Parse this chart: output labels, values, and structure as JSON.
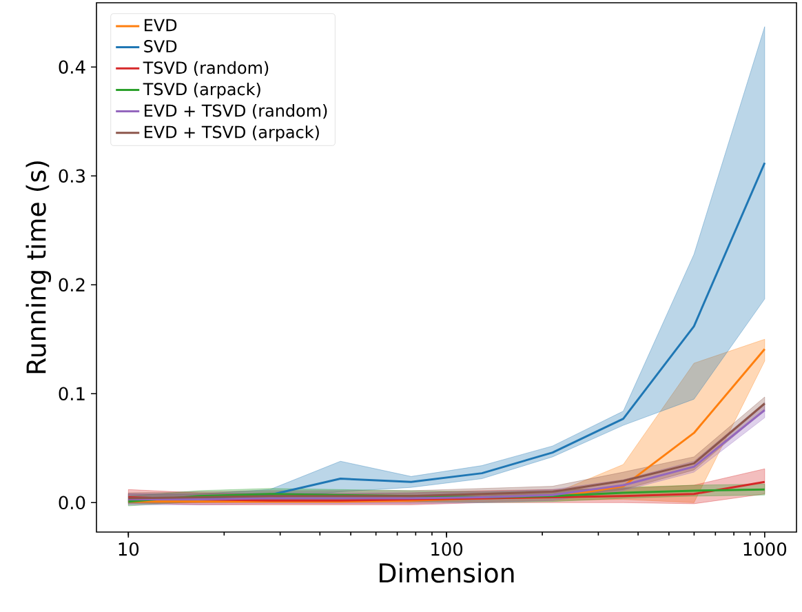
{
  "chart_data": {
    "type": "line",
    "xlabel": "Dimension",
    "ylabel": "Running time (s)",
    "log": "x",
    "xlim": [
      7.94,
      1259
    ],
    "ylim": [
      -0.027,
      0.459
    ],
    "xticks": [
      10,
      100,
      1000
    ],
    "yticks": [
      {
        "value": 0,
        "label": "0.0"
      },
      {
        "value": 0.1,
        "label": "0.1"
      },
      {
        "value": 0.2,
        "label": "0.2"
      },
      {
        "value": 0.3,
        "label": "0.3"
      },
      {
        "value": 0.4,
        "label": "0.4"
      }
    ],
    "x": [
      10,
      16.68,
      27.83,
      46.42,
      77.43,
      129.2,
      215.4,
      359.4,
      599.5,
      1000
    ],
    "legend": "top left",
    "marker": "none",
    "line_style": "solid",
    "series": [
      {
        "name": "EVD",
        "color": "#ff7f0e",
        "values": [
          0.001,
          0.001,
          0.001,
          0.001,
          0.002,
          0.004,
          0.005,
          0.015,
          0.064,
          0.141
        ],
        "lower": [
          0,
          0,
          0,
          0,
          0,
          0.001,
          0.002,
          0.003,
          0.0,
          0.13
        ],
        "upper": [
          0.003,
          0.003,
          0.003,
          0.003,
          0.004,
          0.007,
          0.008,
          0.035,
          0.128,
          0.15
        ]
      },
      {
        "name": "SVD",
        "color": "#1f77b4",
        "values": [
          0.003,
          0.004,
          0.007,
          0.022,
          0.019,
          0.027,
          0.046,
          0.077,
          0.162,
          0.312
        ],
        "lower": [
          0,
          0.002,
          0.004,
          0.01,
          0.014,
          0.022,
          0.042,
          0.071,
          0.095,
          0.187
        ],
        "upper": [
          0.008,
          0.008,
          0.012,
          0.038,
          0.024,
          0.034,
          0.052,
          0.084,
          0.228,
          0.437
        ]
      },
      {
        "name": "TSVD (random)",
        "color": "#d62728",
        "values": [
          0.005,
          0.003,
          0.002,
          0.002,
          0.003,
          0.004,
          0.005,
          0.006,
          0.008,
          0.019
        ],
        "lower": [
          0,
          -0.002,
          -0.002,
          -0.002,
          -0.002,
          0,
          0,
          0,
          -0.001,
          0.008
        ],
        "upper": [
          0.012,
          0.009,
          0.008,
          0.008,
          0.009,
          0.011,
          0.012,
          0.013,
          0.016,
          0.031
        ]
      },
      {
        "name": "TSVD (arpack)",
        "color": "#2ca02c",
        "values": [
          0.001,
          0.006,
          0.008,
          0.007,
          0.006,
          0.005,
          0.006,
          0.009,
          0.011,
          0.012
        ],
        "lower": [
          -0.003,
          0.001,
          0.003,
          0.002,
          0.001,
          0,
          0.001,
          0.004,
          0.006,
          0.007
        ],
        "upper": [
          0.006,
          0.011,
          0.013,
          0.012,
          0.011,
          0.01,
          0.011,
          0.014,
          0.016,
          0.017
        ]
      },
      {
        "name": "EVD + TSVD (random)",
        "color": "#9467bd",
        "values": [
          0.003,
          0.003,
          0.004,
          0.004,
          0.004,
          0.005,
          0.007,
          0.016,
          0.033,
          0.085
        ],
        "lower": [
          -0.002,
          -0.002,
          -0.001,
          -0.001,
          -0.001,
          0,
          0.002,
          0.011,
          0.028,
          0.078
        ],
        "upper": [
          0.008,
          0.008,
          0.009,
          0.009,
          0.009,
          0.01,
          0.012,
          0.021,
          0.038,
          0.092
        ]
      },
      {
        "name": "EVD + TSVD (arpack)",
        "color": "#8c564b",
        "values": [
          0.004,
          0.005,
          0.006,
          0.006,
          0.006,
          0.008,
          0.01,
          0.02,
          0.036,
          0.091
        ],
        "lower": [
          -0.001,
          0,
          0.001,
          0.001,
          0.001,
          0.003,
          0.005,
          0.012,
          0.03,
          0.085
        ],
        "upper": [
          0.009,
          0.01,
          0.011,
          0.011,
          0.011,
          0.013,
          0.015,
          0.028,
          0.042,
          0.097
        ]
      }
    ]
  }
}
